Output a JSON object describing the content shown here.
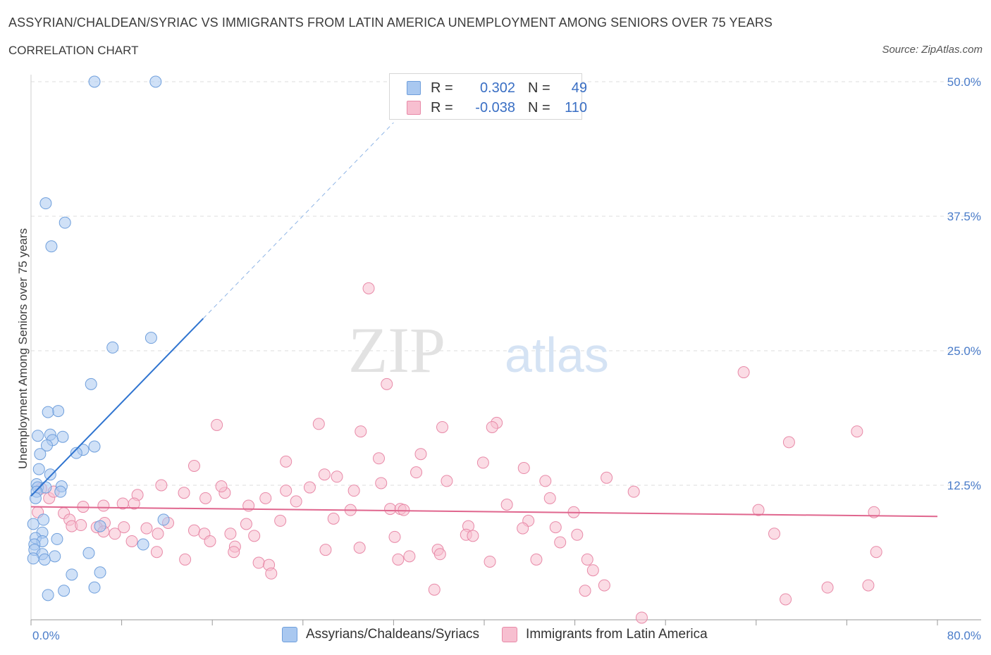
{
  "title": "ASSYRIAN/CHALDEAN/SYRIAC VS IMMIGRANTS FROM LATIN AMERICA UNEMPLOYMENT AMONG SENIORS OVER 75 YEARS",
  "subtitle": "CORRELATION CHART",
  "source": "Source: ZipAtlas.com",
  "watermark": {
    "zip": "ZIP",
    "atlas": "atlas"
  },
  "legend": {
    "rows": [
      {
        "r_label": "R =",
        "r_value": "0.302",
        "n_label": "N =",
        "n_value": "49",
        "color": "#a9c8f0",
        "border": "#6f9fdc"
      },
      {
        "r_label": "R =",
        "r_value": "-0.038",
        "n_label": "N =",
        "n_value": "110",
        "color": "#f7bfd0",
        "border": "#e88aa8"
      }
    ]
  },
  "bottom_legend": [
    {
      "label": "Assyrians/Chaldeans/Syriacs",
      "color": "#a9c8f0",
      "border": "#6f9fdc"
    },
    {
      "label": "Immigrants from Latin America",
      "color": "#f7bfd0",
      "border": "#e88aa8"
    }
  ],
  "chart_data": {
    "type": "scatter",
    "title": "ASSYRIAN/CHALDEAN/SYRIAC VS IMMIGRANTS FROM LATIN AMERICA UNEMPLOYMENT AMONG SENIORS OVER 75 YEARS",
    "xlabel": "",
    "ylabel": "Unemployment Among Seniors over 75 years",
    "xlim": [
      0,
      80
    ],
    "ylim": [
      0,
      50
    ],
    "x_tick_labels": [
      "0.0%",
      "80.0%"
    ],
    "y_ticks": [
      12.5,
      25.0,
      37.5,
      50.0
    ],
    "y_tick_labels": [
      "12.5%",
      "25.0%",
      "37.5%",
      "50.0%"
    ],
    "grid": true,
    "series": [
      {
        "name": "Assyrians/Chaldeans/Syriacs",
        "color": "#6f9fdc",
        "fill": "#a9c8f0",
        "trend": {
          "x0": 0.0,
          "y0": 11.5,
          "x1": 15.2,
          "y1": 28.0,
          "dash_x1": 32.0,
          "dash_y1": 46.2
        },
        "points": [
          [
            5.6,
            50.0
          ],
          [
            11.0,
            50.0
          ],
          [
            1.3,
            38.7
          ],
          [
            3.0,
            36.9
          ],
          [
            1.8,
            34.7
          ],
          [
            10.6,
            26.2
          ],
          [
            7.2,
            25.3
          ],
          [
            5.3,
            21.9
          ],
          [
            2.4,
            19.4
          ],
          [
            1.5,
            19.3
          ],
          [
            0.6,
            17.1
          ],
          [
            1.7,
            17.2
          ],
          [
            2.8,
            17.0
          ],
          [
            1.9,
            16.7
          ],
          [
            1.4,
            16.2
          ],
          [
            5.6,
            16.1
          ],
          [
            4.6,
            15.8
          ],
          [
            4.0,
            15.5
          ],
          [
            0.8,
            15.4
          ],
          [
            0.7,
            14.0
          ],
          [
            1.7,
            13.5
          ],
          [
            0.5,
            12.6
          ],
          [
            0.6,
            12.3
          ],
          [
            1.3,
            12.3
          ],
          [
            2.7,
            12.4
          ],
          [
            2.6,
            11.9
          ],
          [
            0.5,
            11.9
          ],
          [
            0.4,
            11.3
          ],
          [
            0.2,
            8.9
          ],
          [
            11.7,
            9.3
          ],
          [
            1.1,
            9.3
          ],
          [
            6.1,
            8.7
          ],
          [
            1.0,
            8.1
          ],
          [
            0.4,
            7.6
          ],
          [
            2.3,
            7.5
          ],
          [
            1.0,
            7.3
          ],
          [
            0.3,
            7.0
          ],
          [
            9.9,
            7.0
          ],
          [
            0.3,
            6.5
          ],
          [
            1.0,
            6.1
          ],
          [
            5.1,
            6.2
          ],
          [
            2.1,
            5.9
          ],
          [
            1.2,
            5.6
          ],
          [
            0.2,
            5.7
          ],
          [
            3.6,
            4.2
          ],
          [
            6.1,
            4.4
          ],
          [
            5.6,
            3.0
          ],
          [
            2.9,
            2.7
          ],
          [
            1.5,
            2.3
          ]
        ]
      },
      {
        "name": "Immigrants from Latin America",
        "color": "#e88aa8",
        "fill": "#f7bfd0",
        "trend": {
          "x0": 0.0,
          "y0": 10.5,
          "x1": 80.0,
          "y1": 9.6
        },
        "points": [
          [
            29.8,
            30.8
          ],
          [
            62.9,
            23.0
          ],
          [
            31.4,
            21.9
          ],
          [
            16.4,
            18.1
          ],
          [
            25.4,
            18.2
          ],
          [
            36.3,
            17.9
          ],
          [
            41.1,
            18.3
          ],
          [
            40.7,
            17.9
          ],
          [
            29.1,
            17.5
          ],
          [
            72.9,
            17.5
          ],
          [
            66.9,
            16.5
          ],
          [
            34.4,
            15.4
          ],
          [
            30.7,
            15.0
          ],
          [
            22.5,
            14.7
          ],
          [
            39.9,
            14.6
          ],
          [
            14.4,
            14.3
          ],
          [
            43.5,
            14.1
          ],
          [
            25.9,
            13.5
          ],
          [
            34.0,
            13.7
          ],
          [
            27.0,
            13.3
          ],
          [
            50.8,
            13.2
          ],
          [
            36.7,
            12.9
          ],
          [
            45.4,
            12.9
          ],
          [
            30.9,
            12.7
          ],
          [
            24.6,
            12.3
          ],
          [
            11.5,
            12.5
          ],
          [
            22.5,
            12.0
          ],
          [
            28.5,
            12.0
          ],
          [
            53.2,
            11.9
          ],
          [
            13.5,
            11.8
          ],
          [
            17.1,
            11.8
          ],
          [
            9.4,
            11.6
          ],
          [
            15.4,
            11.3
          ],
          [
            20.7,
            11.3
          ],
          [
            45.8,
            11.3
          ],
          [
            23.4,
            11.0
          ],
          [
            8.1,
            10.8
          ],
          [
            19.2,
            10.6
          ],
          [
            42.0,
            10.7
          ],
          [
            4.6,
            10.5
          ],
          [
            28.2,
            10.2
          ],
          [
            31.7,
            10.3
          ],
          [
            32.6,
            10.3
          ],
          [
            32.9,
            10.2
          ],
          [
            47.9,
            10.0
          ],
          [
            64.2,
            10.2
          ],
          [
            74.4,
            10.0
          ],
          [
            0.6,
            10.0
          ],
          [
            2.9,
            9.9
          ],
          [
            22.0,
            9.2
          ],
          [
            26.7,
            9.4
          ],
          [
            43.9,
            9.2
          ],
          [
            3.4,
            9.3
          ],
          [
            6.5,
            9.0
          ],
          [
            19.0,
            8.9
          ],
          [
            3.6,
            8.7
          ],
          [
            4.4,
            8.8
          ],
          [
            5.8,
            8.6
          ],
          [
            10.2,
            8.5
          ],
          [
            14.4,
            8.3
          ],
          [
            38.6,
            8.7
          ],
          [
            46.3,
            8.6
          ],
          [
            43.4,
            8.5
          ],
          [
            6.4,
            8.2
          ],
          [
            11.2,
            8.0
          ],
          [
            7.4,
            8.0
          ],
          [
            15.3,
            8.0
          ],
          [
            17.6,
            8.0
          ],
          [
            19.7,
            7.8
          ],
          [
            38.4,
            7.9
          ],
          [
            39.0,
            7.8
          ],
          [
            48.2,
            7.9
          ],
          [
            65.6,
            8.0
          ],
          [
            32.1,
            7.7
          ],
          [
            8.9,
            7.3
          ],
          [
            15.8,
            7.3
          ],
          [
            46.7,
            7.2
          ],
          [
            18.0,
            6.8
          ],
          [
            29.0,
            6.7
          ],
          [
            26.0,
            6.5
          ],
          [
            11.1,
            6.3
          ],
          [
            17.9,
            6.3
          ],
          [
            35.9,
            6.5
          ],
          [
            36.1,
            6.1
          ],
          [
            74.6,
            6.3
          ],
          [
            13.6,
            5.6
          ],
          [
            32.4,
            5.6
          ],
          [
            33.4,
            5.9
          ],
          [
            40.5,
            5.4
          ],
          [
            49.1,
            5.6
          ],
          [
            20.1,
            5.3
          ],
          [
            21.0,
            5.1
          ],
          [
            44.6,
            5.6
          ],
          [
            49.6,
            4.6
          ],
          [
            21.2,
            4.3
          ],
          [
            35.6,
            2.8
          ],
          [
            48.9,
            2.7
          ],
          [
            50.6,
            3.2
          ],
          [
            70.3,
            3.0
          ],
          [
            73.9,
            3.2
          ],
          [
            66.6,
            1.9
          ],
          [
            53.9,
            0.2
          ],
          [
            1.6,
            11.3
          ],
          [
            2.0,
            11.9
          ],
          [
            0.9,
            12.2
          ],
          [
            6.4,
            10.6
          ],
          [
            12.1,
            9.0
          ],
          [
            9.1,
            10.8
          ],
          [
            8.2,
            8.6
          ],
          [
            16.8,
            12.4
          ]
        ]
      }
    ]
  }
}
